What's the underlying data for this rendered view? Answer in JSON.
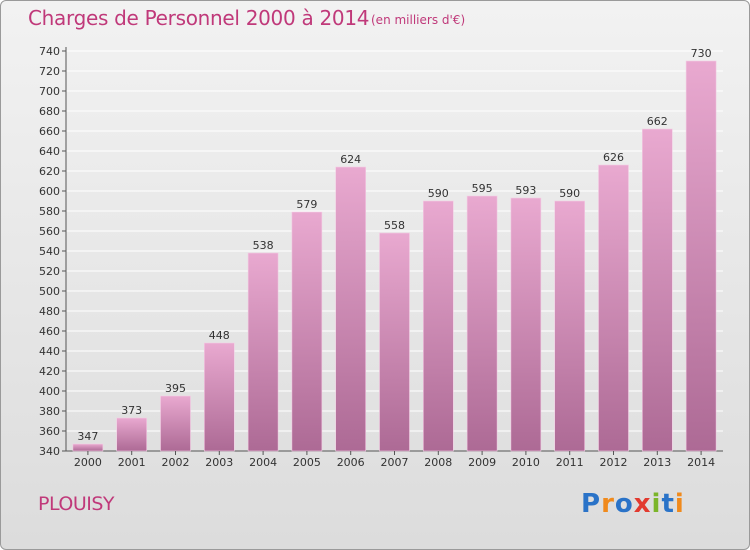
{
  "title": "Charges de Personnel 2000 à 2014",
  "subtitle": "(en milliers d'€)",
  "commune": "PLOUISY",
  "logo": "Proxiti",
  "colors": {
    "title": "#c0397a",
    "bar_top": "#e9a9d0",
    "bar_bottom": "#ad6a95",
    "grid": "#ffffff",
    "logo_letters": [
      "#2a73c8",
      "#f08a1c",
      "#2a73c8",
      "#e23a2f",
      "#7bb52a",
      "#2a73c8",
      "#f08a1c"
    ]
  },
  "chart_data": {
    "type": "bar",
    "title": "Charges de Personnel 2000 à 2014",
    "subtitle": "(en milliers d'€)",
    "categories": [
      "2000",
      "2001",
      "2002",
      "2003",
      "2004",
      "2005",
      "2006",
      "2007",
      "2008",
      "2009",
      "2010",
      "2011",
      "2012",
      "2013",
      "2014"
    ],
    "values": [
      347,
      373,
      395,
      448,
      538,
      579,
      624,
      558,
      590,
      595,
      593,
      590,
      626,
      662,
      730
    ],
    "ylim": [
      340,
      740
    ],
    "ytick_step": 20,
    "grid": true,
    "data_labels": true
  }
}
